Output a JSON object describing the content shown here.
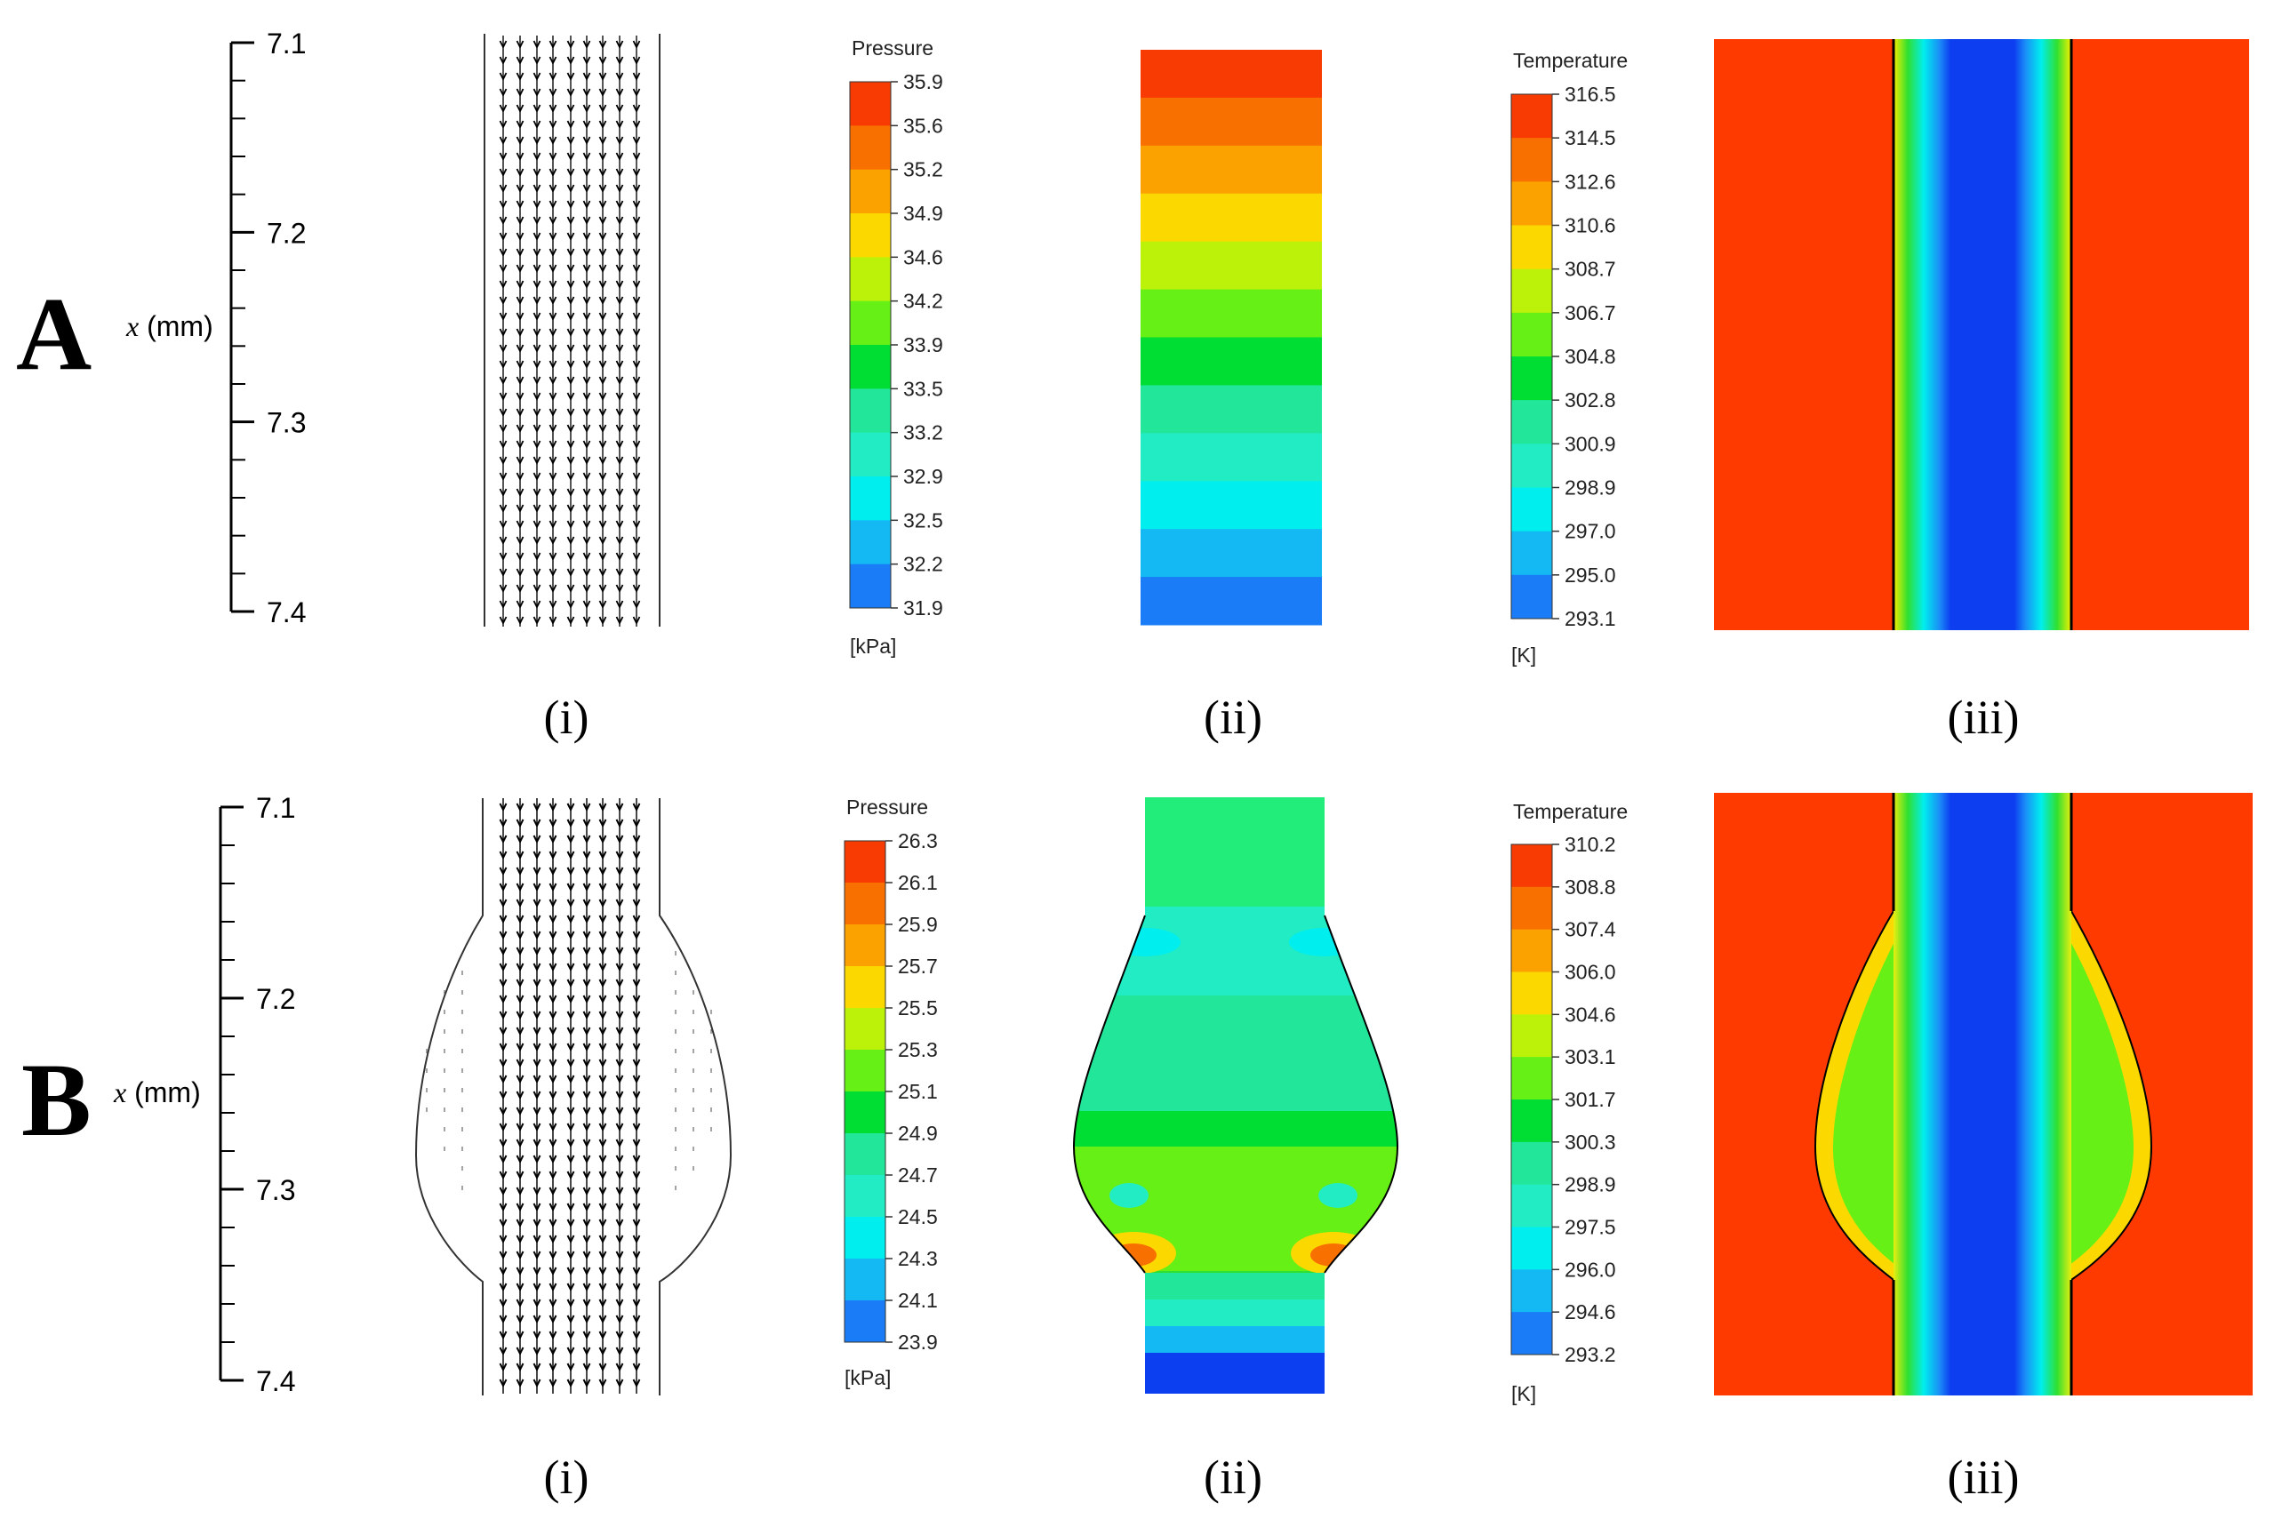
{
  "rows": [
    {
      "label": "A",
      "axis": {
        "label_var": "x",
        "label_unit": " (mm)",
        "ticks": [
          "7.1",
          "7.2",
          "7.3",
          "7.4"
        ]
      },
      "pressure": {
        "title": "Pressure",
        "unit": "[kPa]",
        "values": [
          "35.9",
          "35.6",
          "35.2",
          "34.9",
          "34.6",
          "34.2",
          "33.9",
          "33.5",
          "33.2",
          "32.9",
          "32.5",
          "32.2",
          "31.9"
        ]
      },
      "temperature": {
        "title": "Temperature",
        "unit": "[K]",
        "values": [
          "316.5",
          "314.5",
          "312.6",
          "310.6",
          "308.7",
          "306.7",
          "304.8",
          "302.8",
          "300.9",
          "298.9",
          "297.0",
          "295.0",
          "293.1"
        ]
      },
      "panel_labels": [
        "(i)",
        "(ii)",
        "(iii)"
      ]
    },
    {
      "label": "B",
      "axis": {
        "label_var": "x",
        "label_unit": " (mm)",
        "ticks": [
          "7.1",
          "7.2",
          "7.3",
          "7.4"
        ]
      },
      "pressure": {
        "title": "Pressure",
        "unit": "[kPa]",
        "values": [
          "26.3",
          "26.1",
          "25.9",
          "25.7",
          "25.5",
          "25.3",
          "25.1",
          "24.9",
          "24.7",
          "24.5",
          "24.3",
          "24.1",
          "23.9"
        ]
      },
      "temperature": {
        "title": "Temperature",
        "unit": "[K]",
        "values": [
          "310.2",
          "308.8",
          "307.4",
          "306.0",
          "304.6",
          "303.1",
          "301.7",
          "300.3",
          "298.9",
          "297.5",
          "296.0",
          "294.6",
          "293.2"
        ]
      },
      "panel_labels": [
        "(i)",
        "(ii)",
        "(iii)"
      ]
    }
  ],
  "colors": {
    "levels": [
      "#0c3ff0",
      "#1a7cf7",
      "#14b9f4",
      "#00eeee",
      "#22ecc4",
      "#22e79a",
      "#00dd33",
      "#66f016",
      "#bcf20a",
      "#fbd900",
      "#fba200",
      "#f87000",
      "#f73b02"
    ],
    "hot": "#ff3a00",
    "cold": "#0d3ff0"
  }
}
